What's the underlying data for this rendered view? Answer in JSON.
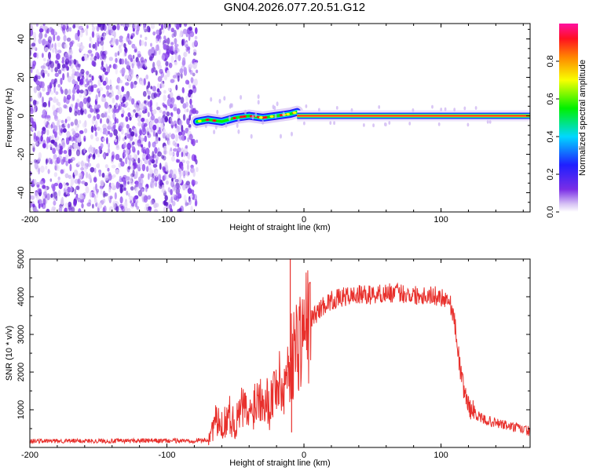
{
  "title": "GN04.2026.077.20.51.G12",
  "colors": {
    "axis": "#000000",
    "snr_line": "#e8302c",
    "noise_dots": "#7a2ee6",
    "background": "#ffffff"
  },
  "chart_data": [
    {
      "type": "heatmap",
      "title": "GN04.2026.077.20.51.G12",
      "xlabel": "Height of straight line (km)",
      "ylabel": "Frequency (Hz)",
      "xlim": [
        -200,
        165
      ],
      "ylim": [
        -50,
        48
      ],
      "x_ticks": [
        -200,
        -100,
        0,
        100
      ],
      "y_ticks": [
        -40,
        -20,
        0,
        20,
        40
      ],
      "colorbar": {
        "label": "Normalized spectral amplitude",
        "range": [
          0,
          1
        ],
        "ticks": [
          "0.0",
          "0.2",
          "0.4",
          "0.6",
          "0.8"
        ],
        "colormap": "rainbow (purple → blue → cyan → green → yellow → red → magenta)"
      },
      "regions": [
        {
          "name": "noise",
          "x_range": [
            -200,
            -78
          ],
          "frequency_range": [
            -50,
            48
          ],
          "amplitude": "low (0.0–0.2)"
        },
        {
          "name": "transition",
          "x_range": [
            -78,
            -5
          ],
          "frequency_track": [
            [
              -78,
              -3
            ],
            [
              -70,
              -2
            ],
            [
              -60,
              -3
            ],
            [
              -50,
              -1
            ],
            [
              -40,
              0
            ],
            [
              -30,
              -1
            ],
            [
              -20,
              0
            ],
            [
              -10,
              1
            ],
            [
              -5,
              2
            ]
          ],
          "amplitude": "mixed"
        },
        {
          "name": "carrier",
          "x_range": [
            -5,
            165
          ],
          "frequency": 0,
          "amplitude": "1.0"
        }
      ]
    },
    {
      "type": "line",
      "xlabel": "Height of straight line (km)",
      "ylabel": "SNR (10 * v/v)",
      "xlim": [
        -200,
        165
      ],
      "ylim": [
        0,
        5000
      ],
      "x_ticks": [
        -200,
        -100,
        0,
        100
      ],
      "y_ticks": [
        1000,
        2000,
        3000,
        4000,
        5000
      ],
      "series": [
        {
          "x": [
            -200,
            -180,
            -160,
            -140,
            -120,
            -100,
            -80,
            -70,
            -65,
            -60,
            -55,
            -50,
            -45,
            -40,
            -35,
            -30,
            -25,
            -20,
            -15,
            -12,
            -10,
            -8,
            -5,
            0,
            5,
            10,
            15,
            20,
            25,
            30,
            40,
            50,
            60,
            70,
            80,
            90,
            100,
            105,
            108,
            110,
            112,
            115,
            118,
            120,
            125,
            130,
            140,
            150,
            165
          ],
          "y": [
            170,
            170,
            175,
            170,
            180,
            175,
            180,
            200,
            700,
            550,
            900,
            600,
            1100,
            800,
            1300,
            1500,
            1100,
            1800,
            1500,
            2100,
            2300,
            2500,
            2800,
            3100,
            3400,
            3600,
            3800,
            3900,
            3950,
            4000,
            4050,
            4050,
            4100,
            4100,
            4050,
            4050,
            4000,
            3950,
            3700,
            3300,
            2700,
            1800,
            1400,
            1100,
            900,
            750,
            650,
            560,
            430
          ],
          "spikes": [
            [
              -10,
              5000
            ],
            [
              -9,
              400
            ]
          ]
        }
      ]
    }
  ]
}
